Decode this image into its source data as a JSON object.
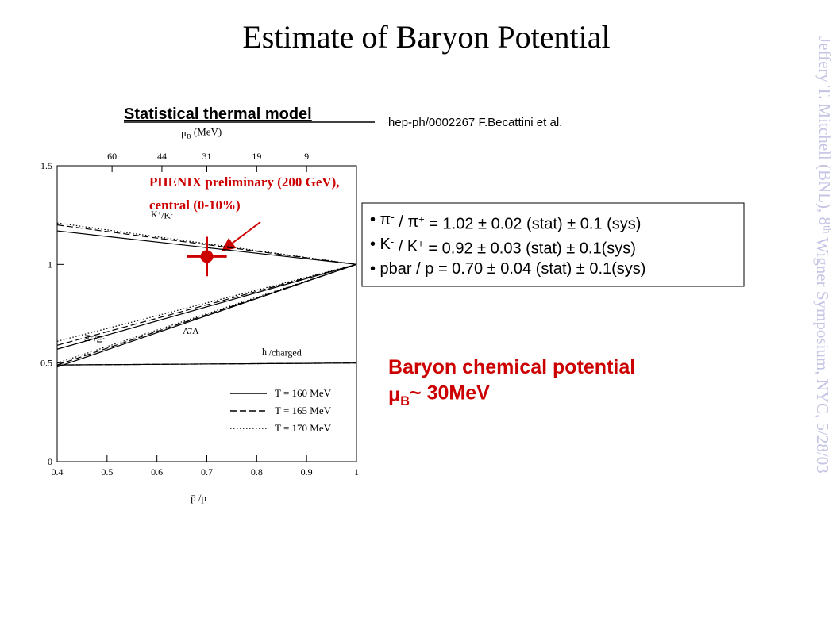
{
  "slide": {
    "title": "Estimate of Baryon Potential",
    "model": "Statistical thermal model",
    "reference": "hep-ph/0002267  F.Becattini et al.",
    "annotation": [
      "PHENIX  preliminary (200 GeV),",
      "central (0-10%)"
    ],
    "bullets": [
      [
        {
          "text": "• π"
        },
        {
          "text": "-",
          "sup": true
        },
        {
          "text": " / π"
        },
        {
          "text": "+",
          "sup": true
        },
        {
          "text": " = 1.02 ± 0.02 (stat) ± 0.1 (sys)"
        }
      ],
      [
        {
          "text": "• K"
        },
        {
          "text": "-",
          "sup": true
        },
        {
          "text": " / K"
        },
        {
          "text": "+",
          "sup": true
        },
        {
          "text": " = 0.92 ± 0.03 (stat) ± 0.1(sys)"
        }
      ],
      [
        {
          "text": "• pbar / p = 0.70 ± 0.04 (stat) ± 0.1(sys)"
        }
      ]
    ],
    "conclusion": [
      [
        {
          "text": "Baryon chemical potential"
        }
      ],
      [
        {
          "text": "μ"
        },
        {
          "text": "B",
          "sub": true
        },
        {
          "text": "~ 30MeV"
        }
      ]
    ],
    "footer": [
      {
        "text": "Jeffery T. Mitchell (BNL), 8"
      },
      {
        "text": "th",
        "sup": true
      },
      {
        "text": " Wigner Symposium, NYC, 5/28/03"
      }
    ]
  },
  "chart_data": {
    "type": "line",
    "xlabel": [
      {
        "text": "p̄ /p"
      }
    ],
    "x2label": [
      {
        "text": "μ"
      },
      {
        "text": "B",
        "sub": true
      },
      {
        "text": " (MeV)"
      }
    ],
    "xlim": [
      0.4,
      1
    ],
    "xticks": [
      0.4,
      0.5,
      0.6,
      0.7,
      0.8,
      0.9,
      1
    ],
    "x2ticks": [
      {
        "value": 0.51,
        "label": "60"
      },
      {
        "value": 0.61,
        "label": "44"
      },
      {
        "value": 0.7,
        "label": "31"
      },
      {
        "value": 0.8,
        "label": "19"
      },
      {
        "value": 0.9,
        "label": "9"
      }
    ],
    "ylim": [
      0,
      1.5
    ],
    "yticks": [
      0,
      0.5,
      1,
      1.5
    ],
    "curve_labels": [
      [
        {
          "text": "K"
        },
        {
          "text": "+",
          "sup": true
        },
        {
          "text": "/K"
        },
        {
          "text": "-",
          "sup": true
        }
      ],
      [
        {
          "text": "Ξ"
        },
        {
          "text": "+",
          "sup": true
        },
        {
          "text": "/Ξ"
        },
        {
          "text": "-",
          "sup": true
        }
      ],
      [
        {
          "text": "Λ̄/Λ"
        }
      ],
      [
        {
          "text": "h"
        },
        {
          "text": "-",
          "sup": true
        },
        {
          "text": "/charged"
        }
      ]
    ],
    "series": [
      {
        "name": "T = 160 MeV",
        "dash": "solid",
        "color": "#000000",
        "curves": [
          {
            "x": [
              0.4,
              1
            ],
            "values": [
              1.17,
              1
            ]
          },
          {
            "x": [
              0.4,
              1
            ],
            "values": [
              0.57,
              1
            ]
          },
          {
            "x": [
              0.4,
              1
            ],
            "values": [
              0.48,
              1
            ]
          },
          {
            "x": [
              0.4,
              1
            ],
            "values": [
              0.49,
              0.5
            ]
          }
        ]
      },
      {
        "name": "T = 165 MeV",
        "dash": "dashed",
        "color": "#000000",
        "curves": [
          {
            "x": [
              0.4,
              1
            ],
            "values": [
              1.2,
              1
            ]
          },
          {
            "x": [
              0.4,
              1
            ],
            "values": [
              0.59,
              1
            ]
          },
          {
            "x": [
              0.4,
              1
            ],
            "values": [
              0.49,
              1
            ]
          },
          {
            "x": [
              0.4,
              1
            ],
            "values": [
              0.49,
              0.5
            ]
          }
        ]
      },
      {
        "name": "T = 170 MeV",
        "dash": "dotted",
        "color": "#000000",
        "curves": [
          {
            "x": [
              0.4,
              1
            ],
            "values": [
              1.21,
              1
            ]
          },
          {
            "x": [
              0.4,
              1
            ],
            "values": [
              0.61,
              1
            ]
          },
          {
            "x": [
              0.4,
              1
            ],
            "values": [
              0.5,
              1
            ]
          },
          {
            "x": [
              0.4,
              1
            ],
            "values": [
              0.49,
              0.5
            ]
          }
        ]
      }
    ],
    "points": [
      {
        "x": 0.7,
        "y": 1.04,
        "xerr": 0.04,
        "yerr": 0.1,
        "color": "#cc0000"
      }
    ]
  }
}
